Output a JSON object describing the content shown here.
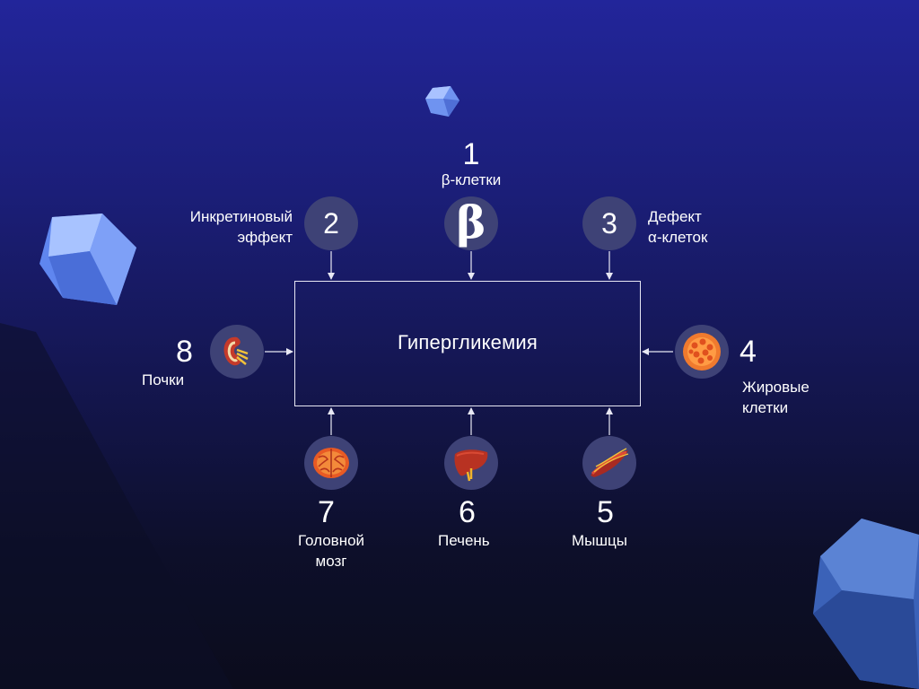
{
  "center": {
    "label": "Гипергликемия"
  },
  "nodes": [
    {
      "id": "1",
      "number": "1",
      "label": "β-клетки",
      "symbol": "β",
      "icon": "beta-symbol"
    },
    {
      "id": "2",
      "number": "2",
      "label_lines": [
        "Инкретиновый",
        "эффект"
      ]
    },
    {
      "id": "3",
      "number": "3",
      "label_lines": [
        "Дефект",
        "α-клеток"
      ]
    },
    {
      "id": "4",
      "number": "4",
      "label_lines": [
        "Жировые",
        "клетки"
      ],
      "icon": "fat-cell-icon"
    },
    {
      "id": "5",
      "number": "5",
      "label": "Мышцы",
      "icon": "muscle-icon"
    },
    {
      "id": "6",
      "number": "6",
      "label": "Печень",
      "icon": "liver-icon"
    },
    {
      "id": "7",
      "number": "7",
      "label_lines": [
        "Головной",
        "мозг"
      ],
      "icon": "brain-icon"
    },
    {
      "id": "8",
      "number": "8",
      "label": "Почки",
      "icon": "kidney-icon"
    }
  ],
  "colors": {
    "bg_top": "#22259a",
    "bg_bottom": "#0b0c1c",
    "circle": "#3e4276",
    "box_border": "#e8e8f4",
    "crystal": "#8fb2ff"
  }
}
